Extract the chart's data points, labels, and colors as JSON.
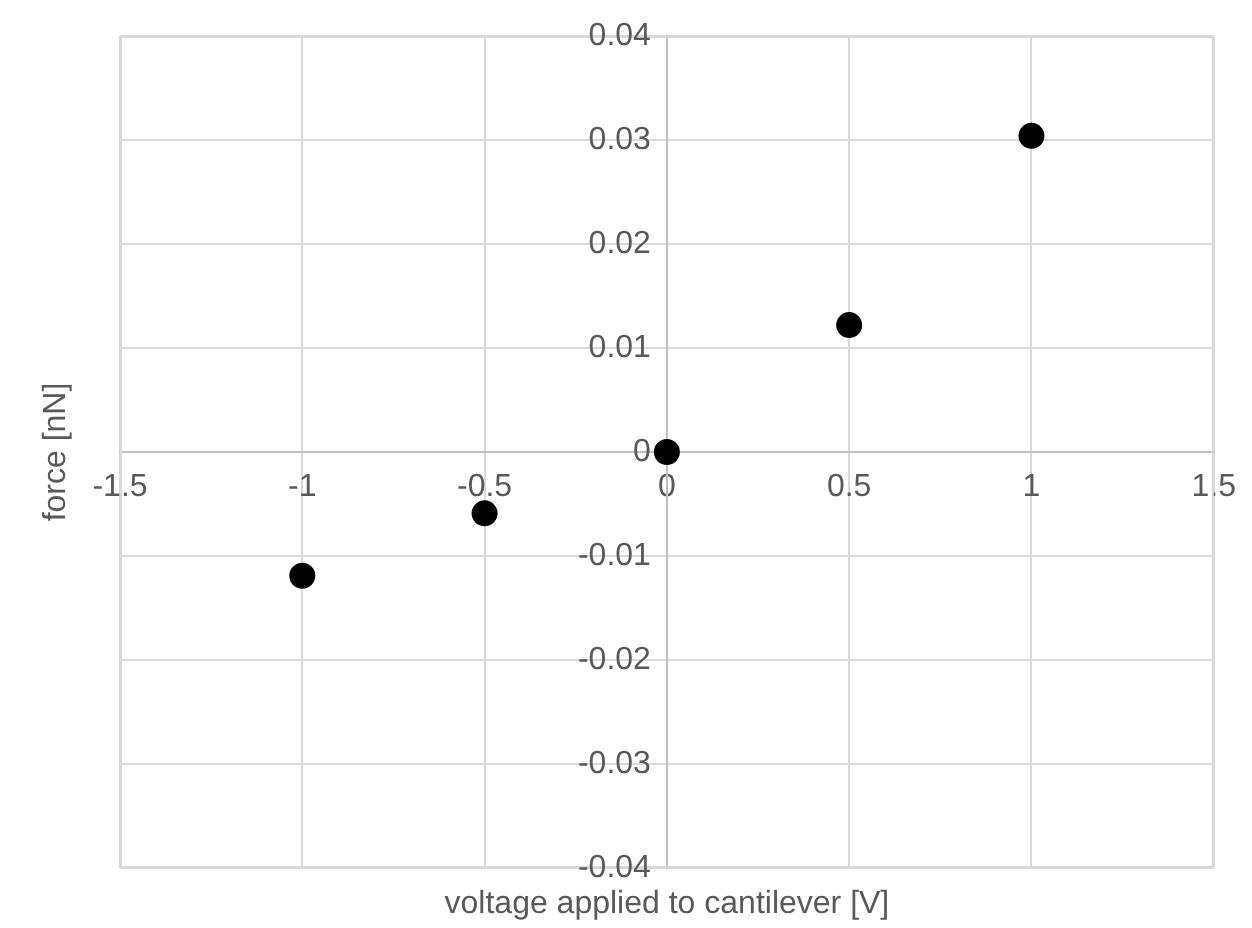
{
  "chart_data": {
    "type": "scatter",
    "xlabel": "voltage applied to cantilever [V]",
    "ylabel": "force [nN]",
    "x": [
      -1,
      -0.5,
      0,
      0.5,
      1
    ],
    "series": [
      {
        "color": "#000000",
        "values": [
          -0.0119,
          -0.0059,
          0,
          0.0122,
          0.0304
        ]
      }
    ],
    "xlim": [
      -1.5,
      1.5
    ],
    "xticks": [
      -1.5,
      -1,
      -0.5,
      0,
      0.5,
      1,
      1.5
    ],
    "ylim": [
      -0.04,
      0.04
    ],
    "yticks": [
      -0.04,
      -0.03,
      -0.02,
      -0.01,
      0,
      0.01,
      0.02,
      0.03,
      0.04
    ],
    "grid": true,
    "legend": false,
    "marker": "circle"
  }
}
